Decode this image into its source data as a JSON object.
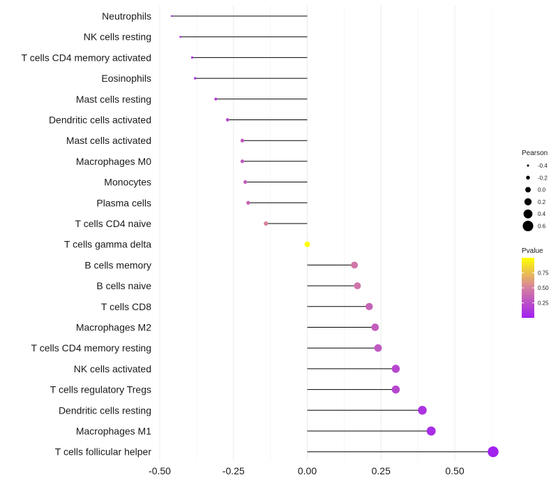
{
  "chart_data": {
    "type": "lollipop",
    "title": "",
    "xlabel": "",
    "ylabel": "",
    "xlim": [
      -0.5,
      0.66
    ],
    "x_ticks": [
      -0.5,
      -0.25,
      0.0,
      0.25,
      0.5
    ],
    "x_tick_labels": [
      "-0.50",
      "-0.25",
      "0.00",
      "0.25",
      "0.50"
    ],
    "grid": true,
    "baseline": 0,
    "points": [
      {
        "label": "Neutrophils",
        "pearson": -0.46,
        "pvalue": 0.02
      },
      {
        "label": "NK cells resting",
        "pearson": -0.43,
        "pvalue": 0.05
      },
      {
        "label": "T cells CD4 memory activated",
        "pearson": -0.39,
        "pvalue": 0.07
      },
      {
        "label": "Eosinophils",
        "pearson": -0.38,
        "pvalue": 0.08
      },
      {
        "label": "Mast cells resting",
        "pearson": -0.31,
        "pvalue": 0.15
      },
      {
        "label": "Dendritic cells activated",
        "pearson": -0.27,
        "pvalue": 0.2
      },
      {
        "label": "Mast cells activated",
        "pearson": -0.22,
        "pvalue": 0.3
      },
      {
        "label": "Macrophages M0",
        "pearson": -0.22,
        "pvalue": 0.3
      },
      {
        "label": "Monocytes",
        "pearson": -0.21,
        "pvalue": 0.33
      },
      {
        "label": "Plasma cells",
        "pearson": -0.2,
        "pvalue": 0.35
      },
      {
        "label": "T cells CD4 naive",
        "pearson": -0.14,
        "pvalue": 0.52
      },
      {
        "label": "T cells gamma delta",
        "pearson": 0.0,
        "pvalue": 1.0
      },
      {
        "label": "B cells memory",
        "pearson": 0.16,
        "pvalue": 0.45
      },
      {
        "label": "B cells naive",
        "pearson": 0.17,
        "pvalue": 0.44
      },
      {
        "label": "T cells CD8",
        "pearson": 0.21,
        "pvalue": 0.35
      },
      {
        "label": "Macrophages M2",
        "pearson": 0.23,
        "pvalue": 0.32
      },
      {
        "label": "T cells CD4 memory resting",
        "pearson": 0.24,
        "pvalue": 0.3
      },
      {
        "label": "NK cells activated",
        "pearson": 0.3,
        "pvalue": 0.2
      },
      {
        "label": "T cells regulatory  Tregs ",
        "pearson": 0.3,
        "pvalue": 0.2
      },
      {
        "label": "Dendritic cells resting",
        "pearson": 0.39,
        "pvalue": 0.1
      },
      {
        "label": "Macrophages M1",
        "pearson": 0.42,
        "pvalue": 0.07
      },
      {
        "label": "T cells follicular helper",
        "pearson": 0.63,
        "pvalue": 0.005
      }
    ],
    "legend_size": {
      "title": "Pearson",
      "values": [
        -0.4,
        -0.2,
        0.0,
        0.2,
        0.4,
        0.6
      ],
      "labels": [
        "-0.4",
        "-0.2",
        "0.0",
        "0.2",
        "0.4",
        "0.6"
      ]
    },
    "legend_color": {
      "title": "Pvalue",
      "ticks": [
        0.75,
        0.5,
        0.25
      ],
      "tick_labels": [
        "0.75",
        "0.50",
        "0.25"
      ],
      "range": [
        0.0,
        1.0
      ],
      "color_low": "#a020f0",
      "color_mid": "#d67fa0",
      "color_high": "#ffff00"
    },
    "legend_placement": "right"
  }
}
